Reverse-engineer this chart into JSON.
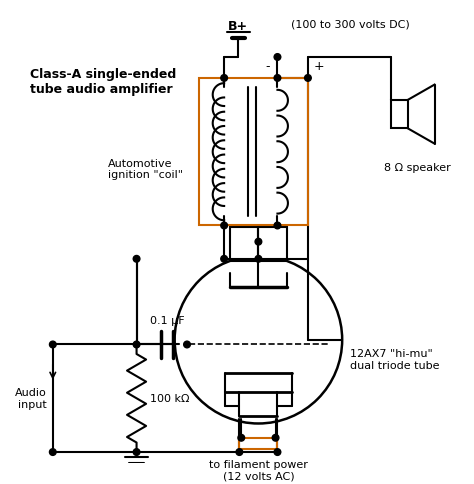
{
  "title": "Class-A single-ended\ntube audio amplifier",
  "label_bplus": "B+",
  "label_voltage": "(100 to 300 volts DC)",
  "label_coil": "Automotive\nignition \"coil\"",
  "label_speaker": "8 Ω speaker",
  "label_tube": "12AX7 \"hi-mu\"\ndual triode tube",
  "label_cap": "0.1 μF",
  "label_res": "100 kΩ",
  "label_audio": "Audio\ninput",
  "label_filament": "to filament power\n(12 volts AC)",
  "label_minus": "-",
  "label_plus": "+",
  "bg_color": "#ffffff",
  "line_color": "#000000",
  "orange_color": "#cc6600",
  "fig_width": 4.74,
  "fig_height": 4.85,
  "dpi": 100
}
